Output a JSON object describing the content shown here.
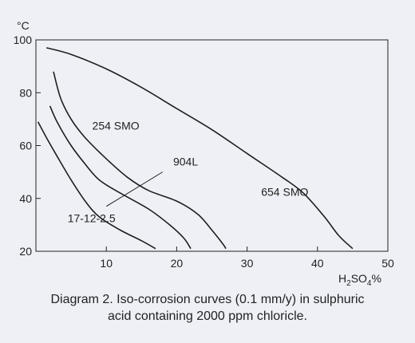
{
  "chart_data": {
    "type": "line",
    "ylabel": "°C",
    "xlabel": "H2SO4%",
    "xlim": [
      0,
      50
    ],
    "ylim": [
      20,
      100
    ],
    "x_ticks": [
      0,
      10,
      20,
      30,
      40,
      50
    ],
    "y_ticks": [
      20,
      40,
      60,
      80,
      100
    ],
    "grid": false,
    "series": [
      {
        "name": "654 SMO",
        "label_pos": {
          "x": 32,
          "y": 41
        },
        "points": [
          [
            1.5,
            97
          ],
          [
            5,
            94.5
          ],
          [
            10,
            89
          ],
          [
            15,
            82
          ],
          [
            20,
            74
          ],
          [
            25,
            66
          ],
          [
            30,
            57
          ],
          [
            35,
            48
          ],
          [
            38,
            42
          ],
          [
            41,
            33
          ],
          [
            43,
            26
          ],
          [
            45,
            21
          ]
        ]
      },
      {
        "name": "254 SMO",
        "label_pos": {
          "x": 8,
          "y": 66
        },
        "points": [
          [
            2.5,
            88
          ],
          [
            3.5,
            78
          ],
          [
            5,
            70
          ],
          [
            7,
            63
          ],
          [
            10,
            55
          ],
          [
            13,
            48
          ],
          [
            16,
            43
          ],
          [
            20,
            39
          ],
          [
            23,
            34
          ],
          [
            25,
            28
          ],
          [
            26.5,
            23
          ],
          [
            27,
            21
          ]
        ]
      },
      {
        "name": "904L",
        "label_pos": {
          "x": 19.5,
          "y": 52.5
        },
        "leader": [
          [
            10,
            37
          ],
          [
            18,
            50
          ]
        ],
        "points": [
          [
            2,
            75
          ],
          [
            3,
            69
          ],
          [
            5,
            60
          ],
          [
            7,
            53
          ],
          [
            9,
            47
          ],
          [
            12,
            42
          ],
          [
            16,
            36
          ],
          [
            19,
            30
          ],
          [
            21,
            25
          ],
          [
            22,
            21
          ]
        ]
      },
      {
        "name": "17-12-2.5",
        "label_pos": {
          "x": 4.5,
          "y": 31
        },
        "points": [
          [
            0.3,
            69
          ],
          [
            1.5,
            63
          ],
          [
            3,
            56
          ],
          [
            5,
            47
          ],
          [
            7,
            39
          ],
          [
            9,
            33
          ],
          [
            12,
            28
          ],
          [
            15,
            24
          ],
          [
            17,
            21
          ]
        ]
      }
    ]
  },
  "caption": {
    "line1": "Diagram 2. Iso-corrosion curves (0.1 mm/y) in sulphuric",
    "line2": "acid containing 2000 ppm chloricle."
  }
}
